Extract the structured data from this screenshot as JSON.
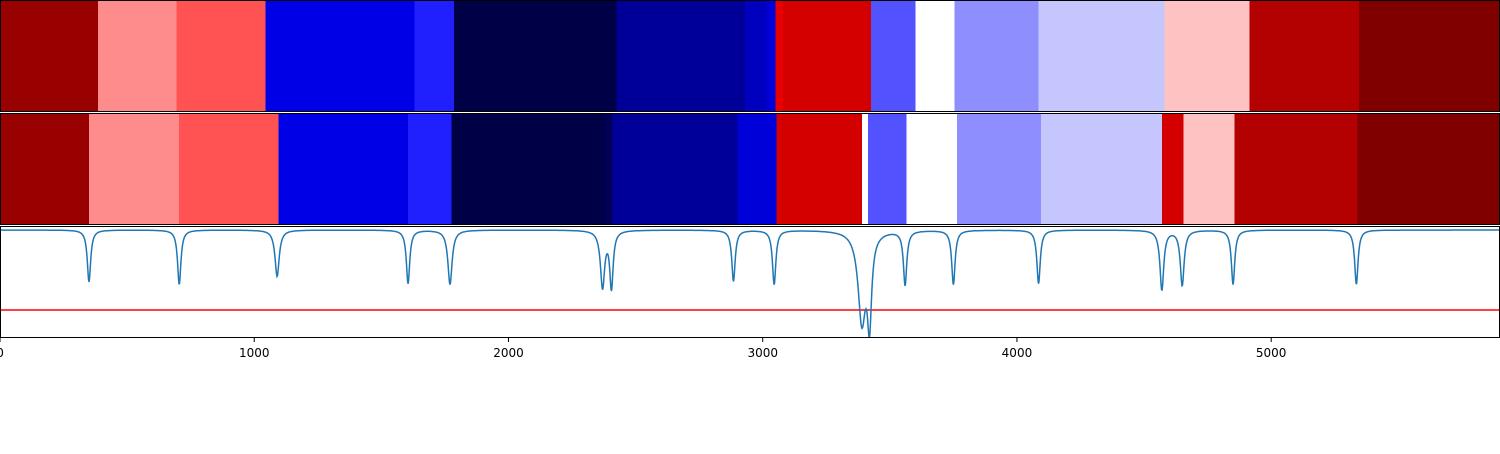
{
  "chart_data": {
    "type": "heatmap",
    "title": "",
    "xlabel": "",
    "ylabel": "",
    "xlim": [
      0,
      5900
    ],
    "x_ticks": [
      0,
      1000,
      2000,
      3000,
      4000,
      5000
    ],
    "x_tick_labels": [
      "0",
      "1000",
      "2000",
      "3000",
      "4000",
      "5000"
    ],
    "grid": false,
    "legend": "none",
    "segment_rows": [
      {
        "segments": [
          {
            "start": 0,
            "end": 385,
            "color": "#990000"
          },
          {
            "start": 385,
            "end": 695,
            "color": "#ff8c8c"
          },
          {
            "start": 695,
            "end": 1045,
            "color": "#ff5353"
          },
          {
            "start": 1045,
            "end": 1630,
            "color": "#0000e6"
          },
          {
            "start": 1630,
            "end": 1785,
            "color": "#2020ff"
          },
          {
            "start": 1785,
            "end": 2425,
            "color": "#000046"
          },
          {
            "start": 2425,
            "end": 2930,
            "color": "#000098"
          },
          {
            "start": 2930,
            "end": 3015,
            "color": "#0000bf"
          },
          {
            "start": 3015,
            "end": 3050,
            "color": "#0000d8"
          },
          {
            "start": 3050,
            "end": 3080,
            "color": "#e60000"
          },
          {
            "start": 3080,
            "end": 3425,
            "color": "#d40000"
          },
          {
            "start": 3425,
            "end": 3600,
            "color": "#5252ff"
          },
          {
            "start": 3600,
            "end": 3755,
            "color": "#ffffff"
          },
          {
            "start": 3755,
            "end": 4085,
            "color": "#8e8eff"
          },
          {
            "start": 4085,
            "end": 4580,
            "color": "#c6c6ff"
          },
          {
            "start": 4580,
            "end": 4915,
            "color": "#ffc2c2"
          },
          {
            "start": 4915,
            "end": 5345,
            "color": "#b30000"
          },
          {
            "start": 5345,
            "end": 5900,
            "color": "#800000"
          }
        ]
      },
      {
        "segments": [
          {
            "start": 0,
            "end": 350,
            "color": "#990000"
          },
          {
            "start": 350,
            "end": 705,
            "color": "#ff8c8c"
          },
          {
            "start": 705,
            "end": 1095,
            "color": "#ff5353"
          },
          {
            "start": 1095,
            "end": 1605,
            "color": "#0000e6"
          },
          {
            "start": 1605,
            "end": 1775,
            "color": "#2020ff"
          },
          {
            "start": 1775,
            "end": 2380,
            "color": "#000046"
          },
          {
            "start": 2380,
            "end": 2410,
            "color": "#000058"
          },
          {
            "start": 2410,
            "end": 2900,
            "color": "#000098"
          },
          {
            "start": 2900,
            "end": 3055,
            "color": "#0000d8"
          },
          {
            "start": 3055,
            "end": 3390,
            "color": "#d40000"
          },
          {
            "start": 3390,
            "end": 3415,
            "color": "#ffffff"
          },
          {
            "start": 3415,
            "end": 3565,
            "color": "#5252ff"
          },
          {
            "start": 3565,
            "end": 3765,
            "color": "#ffffff"
          },
          {
            "start": 3765,
            "end": 4095,
            "color": "#8e8eff"
          },
          {
            "start": 4095,
            "end": 4570,
            "color": "#c6c6ff"
          },
          {
            "start": 4570,
            "end": 4655,
            "color": "#d40000"
          },
          {
            "start": 4655,
            "end": 4855,
            "color": "#ffc2c2"
          },
          {
            "start": 4855,
            "end": 5340,
            "color": "#b30000"
          },
          {
            "start": 5340,
            "end": 5900,
            "color": "#800000"
          }
        ]
      }
    ],
    "line_panel": {
      "baseline": 1.0,
      "ylim": [
        -0.35,
        1.05
      ],
      "threshold": 0.0,
      "threshold_color": "#ff0000",
      "line_color": "#1f77b4",
      "dips": [
        {
          "x": 350,
          "depth": 0.65,
          "width": 8
        },
        {
          "x": 705,
          "depth": 0.68,
          "width": 8
        },
        {
          "x": 1090,
          "depth": 0.58,
          "width": 10
        },
        {
          "x": 1605,
          "depth": 0.67,
          "width": 8
        },
        {
          "x": 1770,
          "depth": 0.68,
          "width": 10
        },
        {
          "x": 2370,
          "depth": 0.71,
          "width": 10
        },
        {
          "x": 2405,
          "depth": 0.71,
          "width": 8
        },
        {
          "x": 2885,
          "depth": 0.64,
          "width": 8
        },
        {
          "x": 3045,
          "depth": 0.68,
          "width": 8
        },
        {
          "x": 3390,
          "depth": 1.12,
          "width": 18
        },
        {
          "x": 3420,
          "depth": 1.05,
          "width": 10
        },
        {
          "x": 3560,
          "depth": 0.68,
          "width": 8
        },
        {
          "x": 3750,
          "depth": 0.68,
          "width": 8
        },
        {
          "x": 4085,
          "depth": 0.67,
          "width": 8
        },
        {
          "x": 4570,
          "depth": 0.75,
          "width": 9
        },
        {
          "x": 4650,
          "depth": 0.69,
          "width": 9
        },
        {
          "x": 4850,
          "depth": 0.68,
          "width": 8
        },
        {
          "x": 5335,
          "depth": 0.68,
          "width": 8
        }
      ]
    }
  }
}
